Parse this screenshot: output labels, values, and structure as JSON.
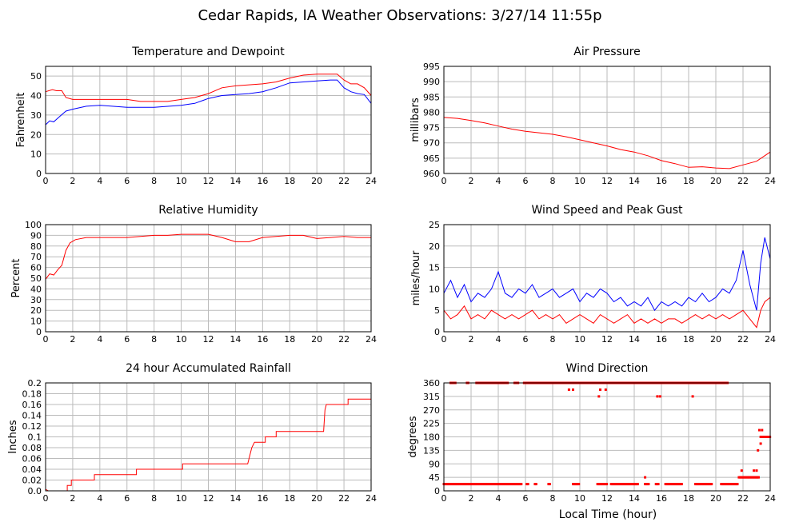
{
  "page": {
    "title": "Cedar Rapids, IA Weather Observations: 3/27/14 11:55p",
    "xaxis_label": "Local Time (hour)"
  },
  "colors": {
    "red": "#ff0000",
    "blue": "#0000ff",
    "grid": "#bbbbbb",
    "frame": "#000000"
  },
  "chart_data": [
    {
      "id": "temp",
      "type": "line",
      "title": "Temperature and Dewpoint",
      "ylabel": "Fahrenheit",
      "xlim": [
        0,
        24
      ],
      "ylim": [
        0,
        55
      ],
      "xticks": [
        0,
        2,
        4,
        6,
        8,
        10,
        12,
        14,
        16,
        18,
        20,
        22,
        24
      ],
      "yticks": [
        0,
        10,
        20,
        30,
        40,
        50
      ],
      "grid": true,
      "series": [
        {
          "color": "red",
          "x": [
            0,
            0.5,
            0.8,
            1.2,
            1.5,
            2,
            4,
            6,
            7,
            8,
            9,
            10,
            11,
            12,
            13,
            14,
            15,
            16,
            17,
            18,
            19,
            20,
            21,
            21.5,
            22,
            22.5,
            23,
            23.5,
            24
          ],
          "y": [
            42,
            43,
            42.5,
            42.5,
            39,
            38,
            38,
            38,
            37,
            37,
            37,
            38,
            39,
            41,
            44,
            45,
            45.5,
            46,
            47,
            49,
            50.5,
            51,
            51,
            51,
            48,
            46,
            46,
            44,
            40
          ]
        },
        {
          "color": "blue",
          "x": [
            0,
            0.3,
            0.6,
            1,
            1.5,
            2,
            3,
            4,
            6,
            8,
            10,
            11,
            12,
            13,
            14,
            15,
            16,
            17,
            18,
            19,
            20,
            21,
            21.5,
            22,
            22.5,
            23,
            23.5,
            24
          ],
          "y": [
            25,
            27,
            26.5,
            29,
            32,
            33,
            34.5,
            35,
            34,
            34,
            35,
            36,
            38.5,
            40,
            40.5,
            41,
            42,
            44,
            46.5,
            47,
            47.5,
            48,
            48,
            44,
            42,
            41,
            40.5,
            36
          ]
        }
      ]
    },
    {
      "id": "pressure",
      "type": "line",
      "title": "Air Pressure",
      "ylabel": "millibars",
      "xlim": [
        0,
        24
      ],
      "ylim": [
        960,
        995
      ],
      "xticks": [
        0,
        2,
        4,
        6,
        8,
        10,
        12,
        14,
        16,
        18,
        20,
        22,
        24
      ],
      "yticks": [
        960,
        965,
        970,
        975,
        980,
        985,
        990,
        995
      ],
      "grid": true,
      "series": [
        {
          "color": "red",
          "x": [
            0,
            1,
            2,
            3,
            4,
            5,
            6,
            7,
            8,
            9,
            10,
            11,
            12,
            13,
            14,
            15,
            16,
            17,
            18,
            19,
            20,
            21,
            22,
            23,
            24
          ],
          "y": [
            978.3,
            978,
            977.3,
            976.5,
            975.5,
            974.5,
            973.8,
            973.3,
            972.8,
            972,
            971,
            970,
            969,
            967.8,
            967,
            965.8,
            964.2,
            963.2,
            962,
            962.2,
            961.8,
            961.6,
            962.8,
            964,
            967
          ]
        }
      ]
    },
    {
      "id": "rh",
      "type": "line",
      "title": "Relative Humidity",
      "ylabel": "Percent",
      "xlim": [
        0,
        24
      ],
      "ylim": [
        0,
        100
      ],
      "xticks": [
        0,
        2,
        4,
        6,
        8,
        10,
        12,
        14,
        16,
        18,
        20,
        22,
        24
      ],
      "yticks": [
        0,
        10,
        20,
        30,
        40,
        50,
        60,
        70,
        80,
        90,
        100
      ],
      "grid": true,
      "series": [
        {
          "color": "red",
          "x": [
            0,
            0.3,
            0.6,
            0.9,
            1.2,
            1.5,
            1.8,
            2.2,
            3,
            4,
            6,
            7,
            8,
            9,
            10,
            11,
            12,
            13,
            14,
            15,
            16,
            17,
            18,
            19,
            20,
            21,
            22,
            23,
            24
          ],
          "y": [
            49,
            54,
            53,
            58,
            62,
            76,
            83,
            86,
            88,
            88,
            88,
            89,
            90,
            90,
            91,
            91,
            91,
            88,
            84,
            84,
            88,
            89,
            90,
            90,
            87,
            88,
            89,
            88,
            88
          ]
        }
      ]
    },
    {
      "id": "wind",
      "type": "line",
      "title": "Wind Speed and Peak Gust",
      "ylabel": "miles/hour",
      "xlim": [
        0,
        24
      ],
      "ylim": [
        0,
        25
      ],
      "xticks": [
        0,
        2,
        4,
        6,
        8,
        10,
        12,
        14,
        16,
        18,
        20,
        22,
        24
      ],
      "yticks": [
        0,
        5,
        10,
        15,
        20,
        25
      ],
      "grid": true,
      "series": [
        {
          "color": "blue",
          "x": [
            0,
            0.5,
            1,
            1.5,
            2,
            2.5,
            3,
            3.5,
            4,
            4.5,
            5,
            5.5,
            6,
            6.5,
            7,
            7.5,
            8,
            8.5,
            9,
            9.5,
            10,
            10.5,
            11,
            11.5,
            12,
            12.5,
            13,
            13.5,
            14,
            14.5,
            15,
            15.5,
            16,
            16.5,
            17,
            17.5,
            18,
            18.5,
            19,
            19.5,
            20,
            20.5,
            21,
            21.5,
            22,
            22.5,
            23,
            23.3,
            23.6,
            24
          ],
          "y": [
            9,
            12,
            8,
            11,
            7,
            9,
            8,
            10,
            14,
            9,
            8,
            10,
            9,
            11,
            8,
            9,
            10,
            8,
            9,
            10,
            7,
            9,
            8,
            10,
            9,
            7,
            8,
            6,
            7,
            6,
            8,
            5,
            7,
            6,
            7,
            6,
            8,
            7,
            9,
            7,
            8,
            10,
            9,
            12,
            19,
            11,
            5,
            16,
            22,
            17
          ]
        },
        {
          "color": "red",
          "x": [
            0,
            0.5,
            1,
            1.5,
            2,
            2.5,
            3,
            3.5,
            4,
            4.5,
            5,
            5.5,
            6,
            6.5,
            7,
            7.5,
            8,
            8.5,
            9,
            9.5,
            10,
            10.5,
            11,
            11.5,
            12,
            12.5,
            13,
            13.5,
            14,
            14.5,
            15,
            15.5,
            16,
            16.5,
            17,
            17.5,
            18,
            18.5,
            19,
            19.5,
            20,
            20.5,
            21,
            21.5,
            22,
            22.5,
            23,
            23.3,
            23.6,
            24
          ],
          "y": [
            5,
            3,
            4,
            6,
            3,
            4,
            3,
            5,
            4,
            3,
            4,
            3,
            4,
            5,
            3,
            4,
            3,
            4,
            2,
            3,
            4,
            3,
            2,
            4,
            3,
            2,
            3,
            4,
            2,
            3,
            2,
            3,
            2,
            3,
            3,
            2,
            3,
            4,
            3,
            4,
            3,
            4,
            3,
            4,
            5,
            3,
            1,
            5,
            7,
            8
          ]
        }
      ]
    },
    {
      "id": "rain",
      "type": "line",
      "title": "24 hour Accumulated Rainfall",
      "ylabel": "Inches",
      "xlim": [
        0,
        24
      ],
      "ylim": [
        0,
        0.2
      ],
      "xticks": [
        0,
        2,
        4,
        6,
        8,
        10,
        12,
        14,
        16,
        18,
        20,
        22,
        24
      ],
      "yticks": [
        0,
        0.02,
        0.04,
        0.06,
        0.08,
        0.1,
        0.12,
        0.14,
        0.16,
        0.18,
        0.2
      ],
      "ytick_labels": [
        "0.0",
        "0.02",
        "0.04",
        "0.06",
        "0.08",
        "0.1",
        "0.12",
        "0.14",
        "0.16",
        "0.18",
        "0.2"
      ],
      "grid": true,
      "series": [
        {
          "color": "red",
          "x": [
            0,
            0.2,
            1.6,
            1.6,
            1.9,
            1.9,
            3.6,
            3.6,
            6.7,
            6.7,
            10.1,
            10.1,
            14.9,
            15,
            15.1,
            15.2,
            15.3,
            15.4,
            16,
            16.2,
            16.2,
            17,
            17,
            20.5,
            20.6,
            20.7,
            22.3,
            22.3,
            24
          ],
          "y": [
            0.003,
            0,
            0,
            0.01,
            0.01,
            0.02,
            0.02,
            0.03,
            0.03,
            0.04,
            0.04,
            0.05,
            0.05,
            0.06,
            0.07,
            0.08,
            0.085,
            0.09,
            0.09,
            0.09,
            0.1,
            0.1,
            0.11,
            0.11,
            0.15,
            0.16,
            0.16,
            0.17,
            0.17
          ]
        }
      ]
    },
    {
      "id": "winddir",
      "type": "scatter",
      "title": "Wind Direction",
      "ylabel": "degrees",
      "xlim": [
        0,
        24
      ],
      "ylim": [
        0,
        360
      ],
      "xticks": [
        0,
        2,
        4,
        6,
        8,
        10,
        12,
        14,
        16,
        18,
        20,
        22,
        24
      ],
      "yticks": [
        0,
        45,
        90,
        135,
        180,
        225,
        270,
        315,
        360
      ],
      "grid": true,
      "runs": [
        {
          "color": "red",
          "y": 360,
          "ranges": [
            [
              0.5,
              0.9
            ],
            [
              1.7,
              1.8
            ],
            [
              2.4,
              4.7
            ],
            [
              5.2,
              5.5
            ],
            [
              5.9,
              20.9
            ]
          ]
        },
        {
          "color": "red",
          "y": 22.5,
          "ranges": [
            [
              0,
              5.7
            ],
            [
              6.1,
              6.2
            ],
            [
              6.7,
              6.8
            ],
            [
              7.7,
              7.8
            ],
            [
              9.5,
              10
            ],
            [
              11.3,
              12
            ],
            [
              12.3,
              14.3
            ],
            [
              14.8,
              15.1
            ],
            [
              15.6,
              15.8
            ],
            [
              16.3,
              17.5
            ],
            [
              18.5,
              19.7
            ],
            [
              20.4,
              21.6
            ]
          ]
        },
        {
          "color": "red",
          "y": 45,
          "ranges": [
            [
              21.7,
              23.2
            ]
          ]
        },
        {
          "color": "red",
          "y": 180,
          "ranges": [
            [
              23.3,
              24
            ]
          ]
        }
      ],
      "points": [
        {
          "x": 9.2,
          "y": 337.5
        },
        {
          "x": 9.5,
          "y": 337.5
        },
        {
          "x": 11.4,
          "y": 315
        },
        {
          "x": 11.5,
          "y": 337.5
        },
        {
          "x": 11.9,
          "y": 337.5
        },
        {
          "x": 15.7,
          "y": 315
        },
        {
          "x": 15.9,
          "y": 315
        },
        {
          "x": 18.3,
          "y": 315
        },
        {
          "x": 14.8,
          "y": 45
        },
        {
          "x": 21.9,
          "y": 67.5
        },
        {
          "x": 22.8,
          "y": 67.5
        },
        {
          "x": 23,
          "y": 67.5
        },
        {
          "x": 23.1,
          "y": 135
        },
        {
          "x": 23.2,
          "y": 202.5
        },
        {
          "x": 23.4,
          "y": 202.5
        },
        {
          "x": 23.3,
          "y": 157.5
        }
      ]
    }
  ]
}
